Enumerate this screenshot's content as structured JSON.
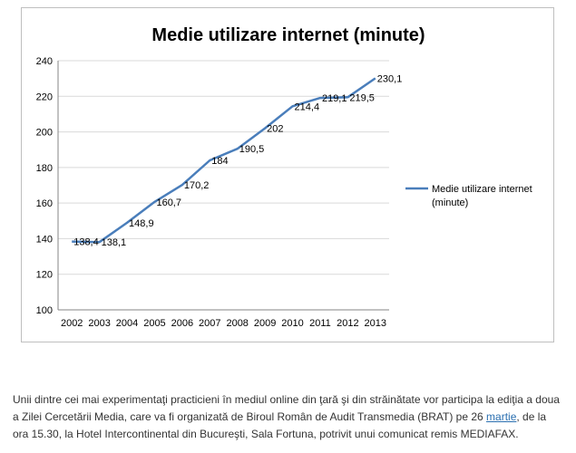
{
  "chart_data": {
    "type": "line",
    "title": "Medie utilizare internet (minute)",
    "xlabel": "",
    "ylabel": "",
    "x": [
      "2002",
      "2003",
      "2004",
      "2005",
      "2006",
      "2007",
      "2008",
      "2009",
      "2010",
      "2011",
      "2012",
      "2013"
    ],
    "series": [
      {
        "name": "Medie utilizare internet (minute)",
        "values": [
          138.4,
          138.1,
          148.9,
          160.7,
          170.2,
          184,
          190.5,
          202,
          214.4,
          219.1,
          219.5,
          230.1
        ],
        "data_labels": [
          "138,4",
          "138,1",
          "148,9",
          "160,7",
          "170,2",
          "184",
          "190,5",
          "202",
          "214,4",
          "219,1",
          "219,5",
          "230,1"
        ],
        "color": "#4a7ebb"
      }
    ],
    "ylim": [
      100,
      240
    ],
    "yticks": [
      100,
      120,
      140,
      160,
      180,
      200,
      220,
      240
    ],
    "grid": true,
    "legend_position": "right"
  },
  "legend": {
    "line1": "Medie utilizare internet",
    "line2": "(minute)"
  },
  "caption": {
    "text_before": "Unii dintre cei mai experimentaţi practicieni în mediul online din ţară şi din străinătate vor participa la ediţia a doua a Zilei Cercetării Media, care va fi organizată de Biroul Român de Audit Transmedia (BRAT) pe 26 ",
    "link": "martie",
    "text_after": ", de la ora 15.30, la Hotel Intercontinental din Bucureşti, Sala Fortuna, potrivit unui comunicat remis MEDIAFAX."
  }
}
